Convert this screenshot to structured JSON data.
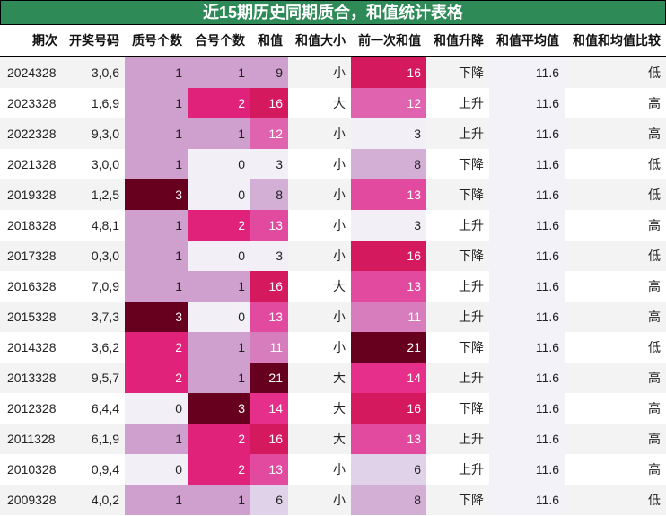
{
  "title": "近15期历史同期质合，和值统计表格",
  "columns": [
    "期次",
    "开奖号码",
    "质号个数",
    "合号个数",
    "和值",
    "和值大小",
    "前一次和值",
    "和值升降",
    "和值平均值",
    "和值和均值比较"
  ],
  "colors": {
    "title_bg": "#2e8b57",
    "heat": {
      "0": "#f3eff7",
      "1": "#cf9fcd",
      "2": "#e1227a",
      "3": "#67001f",
      "s3": "#f3eff7",
      "s6": "#e0d2e8",
      "s8": "#d3afd6",
      "s9": "#cf9fcd",
      "s11": "#d77cbc",
      "s12": "#df63ae",
      "s13": "#e24a9f",
      "s14": "#e52f8b",
      "s16": "#d4195f",
      "s21": "#67001f"
    },
    "avg_bg": "#f3f2f8"
  },
  "rows": [
    {
      "period": "2024328",
      "numbers": "3,0,6",
      "prime": "1",
      "composite": "1",
      "sum": "9",
      "size": "小",
      "prev_sum": "16",
      "trend": "下降",
      "avg": "11.6",
      "compare": "低"
    },
    {
      "period": "2023328",
      "numbers": "1,6,9",
      "prime": "1",
      "composite": "2",
      "sum": "16",
      "size": "大",
      "prev_sum": "12",
      "trend": "上升",
      "avg": "11.6",
      "compare": "高"
    },
    {
      "period": "2022328",
      "numbers": "9,3,0",
      "prime": "1",
      "composite": "1",
      "sum": "12",
      "size": "小",
      "prev_sum": "3",
      "trend": "上升",
      "avg": "11.6",
      "compare": "高"
    },
    {
      "period": "2021328",
      "numbers": "3,0,0",
      "prime": "1",
      "composite": "0",
      "sum": "3",
      "size": "小",
      "prev_sum": "8",
      "trend": "下降",
      "avg": "11.6",
      "compare": "低"
    },
    {
      "period": "2019328",
      "numbers": "1,2,5",
      "prime": "3",
      "composite": "0",
      "sum": "8",
      "size": "小",
      "prev_sum": "13",
      "trend": "下降",
      "avg": "11.6",
      "compare": "低"
    },
    {
      "period": "2018328",
      "numbers": "4,8,1",
      "prime": "1",
      "composite": "2",
      "sum": "13",
      "size": "小",
      "prev_sum": "3",
      "trend": "上升",
      "avg": "11.6",
      "compare": "高"
    },
    {
      "period": "2017328",
      "numbers": "0,3,0",
      "prime": "1",
      "composite": "0",
      "sum": "3",
      "size": "小",
      "prev_sum": "16",
      "trend": "下降",
      "avg": "11.6",
      "compare": "低"
    },
    {
      "period": "2016328",
      "numbers": "7,0,9",
      "prime": "1",
      "composite": "1",
      "sum": "16",
      "size": "大",
      "prev_sum": "13",
      "trend": "上升",
      "avg": "11.6",
      "compare": "高"
    },
    {
      "period": "2015328",
      "numbers": "3,7,3",
      "prime": "3",
      "composite": "0",
      "sum": "13",
      "size": "小",
      "prev_sum": "11",
      "trend": "上升",
      "avg": "11.6",
      "compare": "高"
    },
    {
      "period": "2014328",
      "numbers": "3,6,2",
      "prime": "2",
      "composite": "1",
      "sum": "11",
      "size": "小",
      "prev_sum": "21",
      "trend": "下降",
      "avg": "11.6",
      "compare": "低"
    },
    {
      "period": "2013328",
      "numbers": "9,5,7",
      "prime": "2",
      "composite": "1",
      "sum": "21",
      "size": "大",
      "prev_sum": "14",
      "trend": "上升",
      "avg": "11.6",
      "compare": "高"
    },
    {
      "period": "2012328",
      "numbers": "6,4,4",
      "prime": "0",
      "composite": "3",
      "sum": "14",
      "size": "大",
      "prev_sum": "16",
      "trend": "下降",
      "avg": "11.6",
      "compare": "高"
    },
    {
      "period": "2011328",
      "numbers": "6,1,9",
      "prime": "1",
      "composite": "2",
      "sum": "16",
      "size": "大",
      "prev_sum": "13",
      "trend": "上升",
      "avg": "11.6",
      "compare": "高"
    },
    {
      "period": "2010328",
      "numbers": "0,9,4",
      "prime": "0",
      "composite": "2",
      "sum": "13",
      "size": "小",
      "prev_sum": "6",
      "trend": "上升",
      "avg": "11.6",
      "compare": "高"
    },
    {
      "period": "2009328",
      "numbers": "4,0,2",
      "prime": "1",
      "composite": "1",
      "sum": "6",
      "size": "小",
      "prev_sum": "8",
      "trend": "下降",
      "avg": "11.6",
      "compare": "低"
    }
  ]
}
